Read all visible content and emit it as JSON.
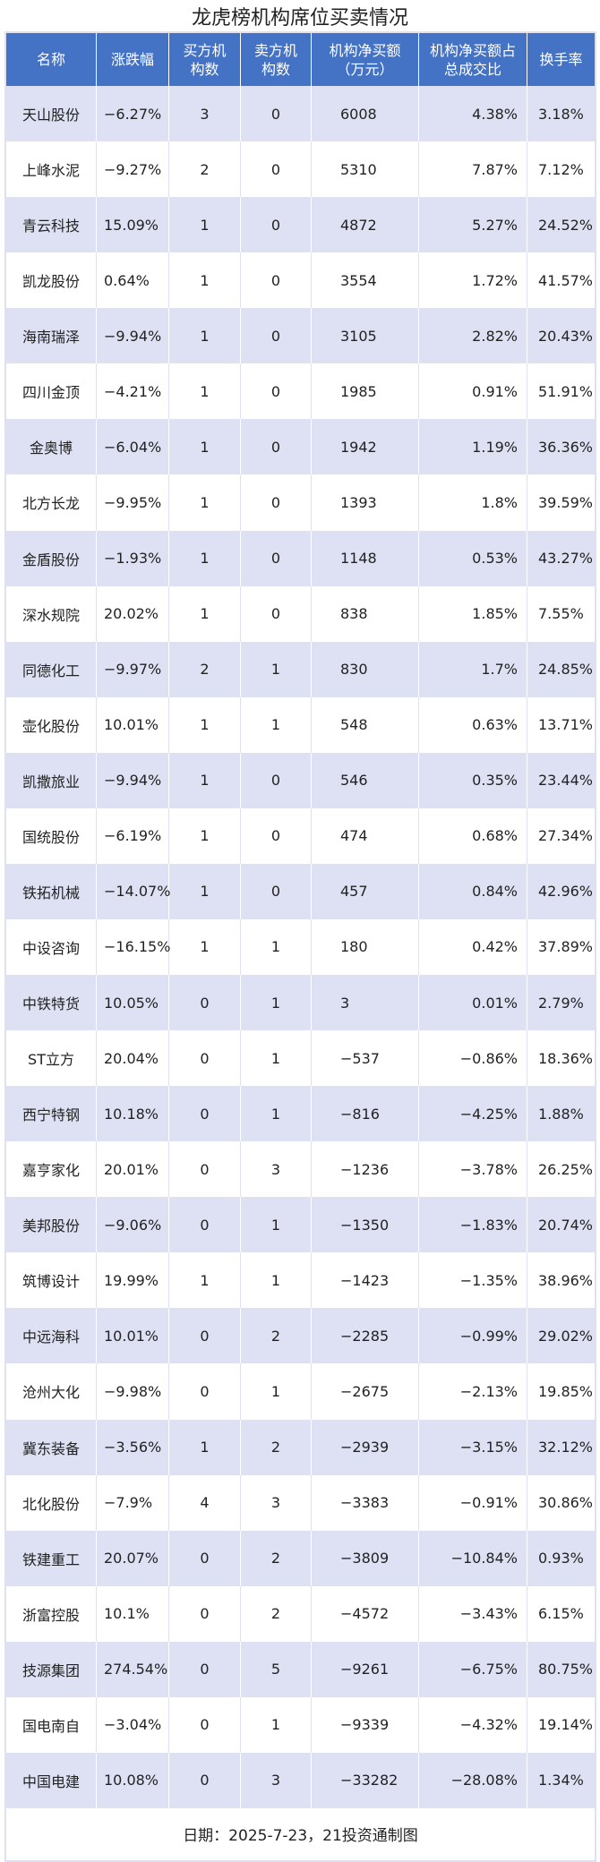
{
  "title": "龙虎榜机构席位买卖情况",
  "headers": [
    "名称",
    "涨跌幅",
    "买方机\n构数",
    "卖方机\n构数",
    "机构净买额\n（万元）",
    "机构净买额占\n总成交比",
    "换手率"
  ],
  "rows": [
    [
      "天山股份",
      "−6.27%",
      "3",
      "0",
      "6008",
      "4.38%",
      "3.18%"
    ],
    [
      "上峰水泥",
      "−9.27%",
      "2",
      "0",
      "5310",
      "7.87%",
      "7.12%"
    ],
    [
      "青云科技",
      "15.09%",
      "1",
      "0",
      "4872",
      "5.27%",
      "24.52%"
    ],
    [
      "凯龙股份",
      "0.64%",
      "1",
      "0",
      "3554",
      "1.72%",
      "41.57%"
    ],
    [
      "海南瑞泽",
      "−9.94%",
      "1",
      "0",
      "3105",
      "2.82%",
      "20.43%"
    ],
    [
      "四川金顶",
      "−4.21%",
      "1",
      "0",
      "1985",
      "0.91%",
      "51.91%"
    ],
    [
      "金奥博",
      "−6.04%",
      "1",
      "0",
      "1942",
      "1.19%",
      "36.36%"
    ],
    [
      "北方长龙",
      "−9.95%",
      "1",
      "0",
      "1393",
      "1.8%",
      "39.59%"
    ],
    [
      "金盾股份",
      "−1.93%",
      "1",
      "0",
      "1148",
      "0.53%",
      "43.27%"
    ],
    [
      "深水规院",
      "20.02%",
      "1",
      "0",
      "838",
      "1.85%",
      "7.55%"
    ],
    [
      "同德化工",
      "−9.97%",
      "2",
      "1",
      "830",
      "1.7%",
      "24.85%"
    ],
    [
      "壶化股份",
      "10.01%",
      "1",
      "1",
      "548",
      "0.63%",
      "13.71%"
    ],
    [
      "凯撒旅业",
      "−9.94%",
      "1",
      "0",
      "546",
      "0.35%",
      "23.44%"
    ],
    [
      "国统股份",
      "−6.19%",
      "1",
      "0",
      "474",
      "0.68%",
      "27.34%"
    ],
    [
      "铁拓机械",
      "−14.07%",
      "1",
      "0",
      "457",
      "0.84%",
      "42.96%"
    ],
    [
      "中设咨询",
      "−16.15%",
      "1",
      "1",
      "180",
      "0.42%",
      "37.89%"
    ],
    [
      "中铁特货",
      "10.05%",
      "0",
      "1",
      "3",
      "0.01%",
      "2.79%"
    ],
    [
      "ST立方",
      "20.04%",
      "0",
      "1",
      "−537",
      "−0.86%",
      "18.36%"
    ],
    [
      "西宁特钢",
      "10.18%",
      "0",
      "1",
      "−816",
      "−4.25%",
      "1.88%"
    ],
    [
      "嘉亨家化",
      "20.01%",
      "0",
      "3",
      "−1236",
      "−3.78%",
      "26.25%"
    ],
    [
      "美邦股份",
      "−9.06%",
      "0",
      "1",
      "−1350",
      "−1.83%",
      "20.74%"
    ],
    [
      "筑博设计",
      "19.99%",
      "1",
      "1",
      "−1423",
      "−1.35%",
      "38.96%"
    ],
    [
      "中远海科",
      "10.01%",
      "0",
      "2",
      "−2285",
      "−0.99%",
      "29.02%"
    ],
    [
      "沧州大化",
      "−9.98%",
      "0",
      "1",
      "−2675",
      "−2.13%",
      "19.85%"
    ],
    [
      "冀东装备",
      "−3.56%",
      "1",
      "2",
      "−2939",
      "−3.15%",
      "32.12%"
    ],
    [
      "北化股份",
      "−7.9%",
      "4",
      "3",
      "−3383",
      "−0.91%",
      "30.86%"
    ],
    [
      "铁建重工",
      "20.07%",
      "0",
      "2",
      "−3809",
      "−10.84%",
      "0.93%"
    ],
    [
      "浙富控股",
      "10.1%",
      "0",
      "2",
      "−4572",
      "−3.43%",
      "6.15%"
    ],
    [
      "技源集团",
      "274.54%",
      "0",
      "5",
      "−9261",
      "−6.75%",
      "80.75%"
    ],
    [
      "国电南自",
      "−3.04%",
      "0",
      "1",
      "−9339",
      "−4.32%",
      "19.14%"
    ],
    [
      "中国电建",
      "10.08%",
      "0",
      "3",
      "−33282",
      "−28.08%",
      "1.34%"
    ]
  ],
  "footer": "日期：2025-7-23，21投资通制图",
  "colors": {
    "header_bg": "#4472c4",
    "stripe": "#dde1f3"
  }
}
